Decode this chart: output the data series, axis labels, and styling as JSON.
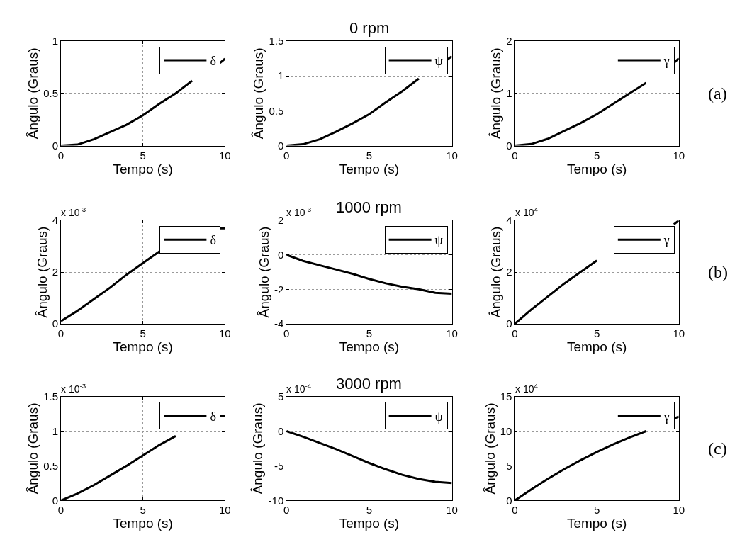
{
  "chart_data": [
    {
      "type": "line",
      "xlabel": "Tempo (s)",
      "ylabel": "Ângulo (Graus)",
      "x": [
        0,
        1,
        2,
        3,
        4,
        5,
        6,
        7,
        8,
        9,
        9.7,
        10
      ],
      "xlim": [
        0,
        10
      ],
      "xticks": [
        0,
        5,
        10
      ],
      "ylim": [
        0,
        1
      ],
      "yticks": [
        0,
        0.5,
        1
      ],
      "grid": true,
      "legend": "top right",
      "series": [
        {
          "name": "δ",
          "color": "#000000",
          "values": [
            0,
            0.01,
            0.06,
            0.13,
            0.2,
            0.29,
            0.4,
            0.5,
            0.62,
            null,
            0.79,
            0.83
          ]
        }
      ]
    },
    {
      "type": "line",
      "title": "0 rpm",
      "xlabel": "Tempo (s)",
      "ylabel": "Ângulo (Graus)",
      "x": [
        0,
        1,
        2,
        3,
        4,
        5,
        6,
        7,
        8,
        9,
        9.7,
        10
      ],
      "xlim": [
        0,
        10
      ],
      "xticks": [
        0,
        5,
        10
      ],
      "ylim": [
        0,
        1.5
      ],
      "yticks": [
        0,
        0.5,
        1,
        1.5
      ],
      "grid": true,
      "legend": "top right",
      "series": [
        {
          "name": "ψ",
          "color": "#000000",
          "values": [
            0,
            0.02,
            0.09,
            0.2,
            0.32,
            0.45,
            0.62,
            0.78,
            0.96,
            null,
            1.23,
            1.28
          ]
        }
      ]
    },
    {
      "type": "line",
      "xlabel": "Tempo (s)",
      "ylabel": "Ângulo (Graus)",
      "x": [
        0,
        1,
        2,
        3,
        4,
        5,
        6,
        7,
        8,
        9,
        9.7,
        10
      ],
      "xlim": [
        0,
        10
      ],
      "xticks": [
        0,
        5,
        10
      ],
      "ylim": [
        0,
        2
      ],
      "yticks": [
        0,
        1,
        2
      ],
      "grid": true,
      "legend": "top right",
      "annotations": [
        "(a)"
      ],
      "series": [
        {
          "name": "γ",
          "color": "#000000",
          "values": [
            0,
            0.03,
            0.13,
            0.28,
            0.43,
            0.6,
            0.8,
            1.0,
            1.2,
            null,
            1.58,
            1.67
          ]
        }
      ]
    },
    {
      "type": "line",
      "xlabel": "Tempo (s)",
      "ylabel": "Ângulo (Graus)",
      "x": [
        0,
        1,
        2,
        3,
        4,
        5,
        6,
        7,
        8,
        9,
        9.7,
        10
      ],
      "xlim": [
        0,
        10
      ],
      "xticks": [
        0,
        5,
        10
      ],
      "ylim": [
        0,
        4
      ],
      "yticks": [
        0,
        2,
        4
      ],
      "grid": true,
      "legend": "top right",
      "annotations": [
        "x 10$^{-3}$"
      ],
      "series": [
        {
          "name": "δ",
          "color": "#000000",
          "values": [
            0.1,
            0.5,
            0.95,
            1.4,
            1.9,
            2.35,
            2.8,
            null,
            null,
            null,
            3.7,
            3.7
          ]
        }
      ]
    },
    {
      "type": "line",
      "title": "1000 rpm",
      "xlabel": "Tempo (s)",
      "ylabel": "Ângulo (Graus)",
      "x": [
        0,
        1,
        2,
        3,
        4,
        5,
        6,
        7,
        8,
        9,
        10
      ],
      "xlim": [
        0,
        10
      ],
      "xticks": [
        0,
        5,
        10
      ],
      "ylim": [
        -4,
        2
      ],
      "yticks": [
        -4,
        -2,
        0,
        2
      ],
      "grid": true,
      "legend": "top right",
      "annotations": [
        "x 10$^{-3}$"
      ],
      "series": [
        {
          "name": "ψ",
          "color": "#000000",
          "values": [
            0,
            -0.35,
            -0.6,
            -0.85,
            -1.1,
            -1.4,
            -1.65,
            -1.85,
            -2.0,
            -2.2,
            -2.25
          ]
        }
      ]
    },
    {
      "type": "line",
      "xlabel": "Tempo (s)",
      "ylabel": "Ângulo (Graus)",
      "x": [
        0,
        1,
        2,
        3,
        4,
        5,
        6,
        7,
        8,
        9,
        9.7,
        10
      ],
      "xlim": [
        0,
        10
      ],
      "xticks": [
        0,
        5,
        10
      ],
      "ylim": [
        0,
        4
      ],
      "yticks": [
        0,
        2,
        4
      ],
      "grid": true,
      "legend": "top right",
      "annotations": [
        "x 10$^{4}$",
        "(b)"
      ],
      "series": [
        {
          "name": "γ",
          "color": "#000000",
          "values": [
            0,
            0.55,
            1.05,
            1.55,
            2.0,
            2.45,
            null,
            null,
            null,
            null,
            3.85,
            4.0
          ]
        }
      ]
    },
    {
      "type": "line",
      "xlabel": "Tempo (s)",
      "ylabel": "Ângulo (Graus)",
      "x": [
        0,
        1,
        2,
        3,
        4,
        5,
        6,
        7,
        8,
        9,
        9.7,
        10
      ],
      "xlim": [
        0,
        10
      ],
      "xticks": [
        0,
        5,
        10
      ],
      "ylim": [
        0,
        1.5
      ],
      "yticks": [
        0,
        0.5,
        1,
        1.5
      ],
      "grid": true,
      "legend": "top right",
      "annotations": [
        "x 10$^{-3}$"
      ],
      "series": [
        {
          "name": "δ",
          "color": "#000000",
          "values": [
            0,
            0.1,
            0.22,
            0.36,
            0.5,
            0.65,
            0.8,
            0.93,
            null,
            null,
            1.22,
            1.22
          ]
        }
      ]
    },
    {
      "type": "line",
      "title": "3000 rpm",
      "xlabel": "Tempo (s)",
      "ylabel": "Ângulo (Graus)",
      "x": [
        0,
        1,
        2,
        3,
        4,
        5,
        6,
        7,
        8,
        9,
        10
      ],
      "xlim": [
        0,
        10
      ],
      "xticks": [
        0,
        5,
        10
      ],
      "ylim": [
        -10,
        5
      ],
      "yticks": [
        -10,
        -5,
        0,
        5
      ],
      "grid": true,
      "legend": "top right",
      "annotations": [
        "x 10$^{-4}$"
      ],
      "series": [
        {
          "name": "ψ",
          "color": "#000000",
          "values": [
            0,
            -0.8,
            -1.7,
            -2.6,
            -3.6,
            -4.6,
            -5.5,
            -6.3,
            -6.9,
            -7.3,
            -7.5
          ]
        }
      ]
    },
    {
      "type": "line",
      "xlabel": "Tempo (s)",
      "ylabel": "Ângulo (Graus)",
      "x": [
        0,
        1,
        2,
        3,
        4,
        5,
        6,
        7,
        8,
        9,
        9.7,
        10
      ],
      "xlim": [
        0,
        10
      ],
      "xticks": [
        0,
        5,
        10
      ],
      "ylim": [
        0,
        15
      ],
      "yticks": [
        0,
        5,
        10,
        15
      ],
      "grid": true,
      "legend": "top right",
      "annotations": [
        "x 10$^{4}$",
        "(c)"
      ],
      "series": [
        {
          "name": "γ",
          "color": "#000000",
          "values": [
            0,
            1.6,
            3.1,
            4.5,
            5.8,
            7.0,
            8.1,
            9.1,
            10.0,
            null,
            11.8,
            12.1
          ]
        }
      ]
    }
  ]
}
